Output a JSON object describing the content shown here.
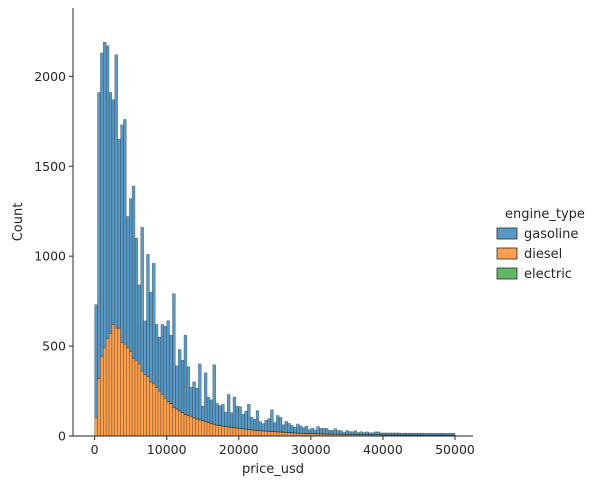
{
  "chart_data": {
    "type": "bar",
    "subtype": "stacked-histogram",
    "xlabel": "price_usd",
    "ylabel": "Count",
    "xlim": [
      -3000,
      52500
    ],
    "ylim": [
      0,
      2380
    ],
    "xticks": [
      0,
      10000,
      20000,
      30000,
      40000,
      50000
    ],
    "yticks": [
      0,
      500,
      1000,
      1500,
      2000
    ],
    "grid": false,
    "legend": {
      "title": "engine_type",
      "placement": "right",
      "entries": [
        "gasoline",
        "diesel",
        "electric"
      ]
    },
    "bin_start": 0,
    "bin_width": 400,
    "series": [
      {
        "name": "gasoline",
        "color": "#1f77b4",
        "values": [
          630,
          1590,
          1690,
          1700,
          1630,
          1340,
          1250,
          1520,
          1050,
          1210,
          1250,
          730,
          850,
          960,
          680,
          440,
          800,
          300,
          680,
          500,
          670,
          350,
          300,
          390,
          400,
          450,
          380,
          630,
          240,
          340,
          290,
          440,
          270,
          160,
          200,
          170,
          310,
          80,
          270,
          140,
          130,
          330,
          120,
          110,
          120,
          80,
          180,
          80,
          170,
          120,
          120,
          80,
          100,
          140,
          70,
          60,
          110,
          50,
          40,
          60,
          70,
          120,
          50,
          90,
          80,
          40,
          60,
          50,
          40,
          30,
          50,
          40,
          30,
          40,
          20,
          30,
          20,
          40,
          30,
          30,
          30,
          20,
          20,
          30,
          20,
          20,
          10,
          20,
          15,
          15,
          20,
          10,
          15,
          10,
          15,
          10,
          10,
          15,
          15,
          10,
          10,
          10,
          10,
          10,
          10,
          10,
          10,
          10,
          10,
          10,
          10,
          10,
          10,
          10,
          10,
          10,
          10,
          10,
          10,
          10,
          10,
          10,
          10,
          10,
          10
        ]
      },
      {
        "name": "diesel",
        "color": "#ff7f0e",
        "values": [
          100,
          320,
          440,
          490,
          540,
          570,
          620,
          600,
          600,
          520,
          510,
          490,
          470,
          430,
          420,
          400,
          360,
          340,
          330,
          300,
          290,
          270,
          250,
          230,
          210,
          190,
          180,
          160,
          150,
          140,
          130,
          120,
          115,
          110,
          100,
          95,
          90,
          85,
          80,
          75,
          70,
          65,
          60,
          58,
          55,
          52,
          50,
          48,
          46,
          44,
          42,
          40,
          38,
          36,
          34,
          32,
          30,
          29,
          28,
          27,
          26,
          25,
          24,
          23,
          22,
          21,
          20,
          19,
          18,
          17,
          16,
          15,
          15,
          14,
          14,
          13,
          13,
          12,
          12,
          11,
          11,
          10,
          10,
          10,
          10,
          9,
          9,
          9,
          9,
          8,
          8,
          8,
          8,
          8,
          7,
          7,
          7,
          7,
          7,
          6,
          6,
          6,
          6,
          6,
          6,
          6,
          5,
          5,
          5,
          5,
          5,
          5,
          5,
          5,
          4,
          4,
          4,
          4,
          4,
          4,
          4,
          4,
          4,
          4,
          4
        ]
      },
      {
        "name": "electric",
        "color": "#2ca02c",
        "values": [
          0,
          0,
          0,
          0,
          0,
          0,
          0,
          0,
          0,
          0,
          0,
          0,
          0,
          0,
          0,
          0,
          0,
          0,
          0,
          0,
          0,
          0,
          0,
          0,
          0,
          1,
          1,
          1,
          1,
          1,
          1,
          1,
          1,
          1,
          1,
          1,
          1,
          1,
          1,
          1,
          1,
          1,
          1,
          1,
          1,
          1,
          1,
          1,
          1,
          1,
          1,
          1,
          1,
          1,
          1,
          1,
          1,
          1,
          1,
          1,
          1,
          1,
          1,
          1,
          1,
          1,
          1,
          1,
          1,
          1,
          1,
          1,
          1,
          1,
          1,
          1,
          1,
          1,
          1,
          1,
          1,
          1,
          1,
          1,
          1,
          1,
          1,
          1,
          1,
          1,
          1,
          1,
          1,
          1,
          1,
          1,
          1,
          1,
          1,
          1,
          1,
          1,
          1,
          1,
          1,
          1,
          1,
          1,
          1,
          1,
          1,
          1,
          1,
          1,
          1,
          1,
          1,
          1,
          1,
          1,
          1,
          1,
          1,
          1,
          1
        ]
      }
    ]
  }
}
